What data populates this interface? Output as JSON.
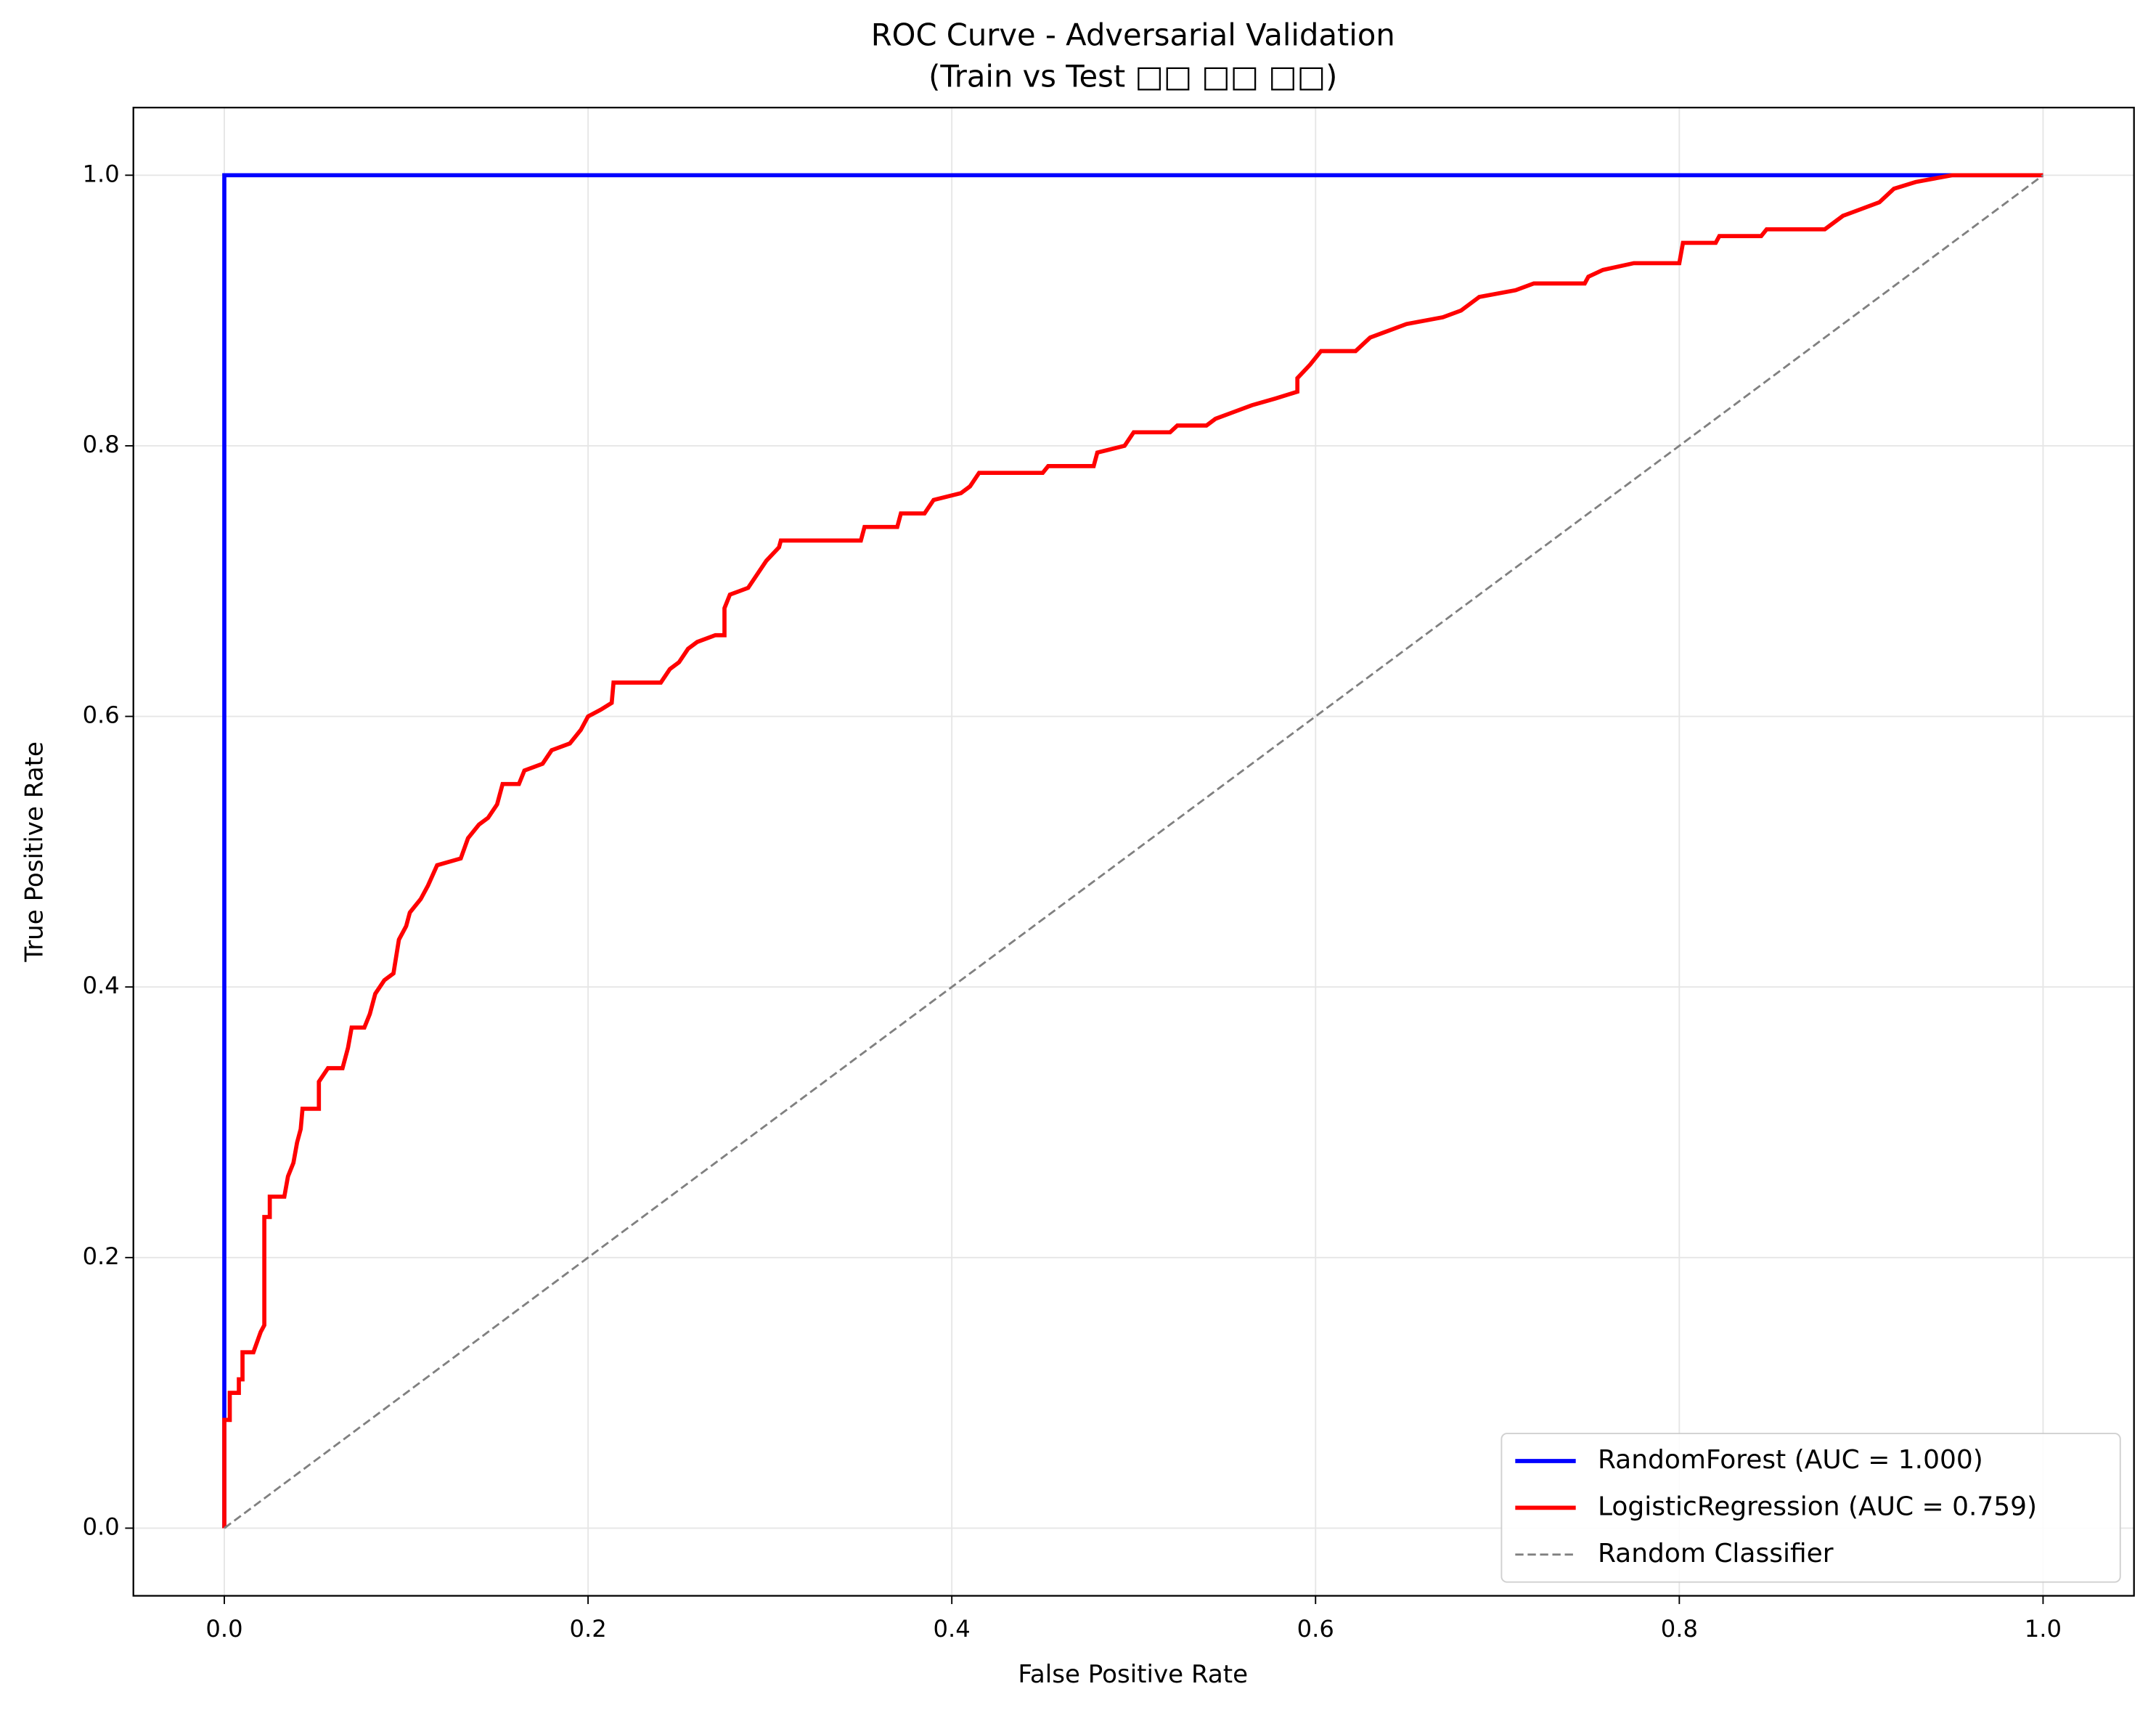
{
  "chart_data": {
    "type": "line",
    "title": "ROC Curve - Adversarial Validation",
    "subtitle": "(Train vs Test □□ □□ □□)",
    "x_label": "False Positive Rate",
    "y_label": "True Positive Rate",
    "xlim": [
      -0.05,
      1.05
    ],
    "ylim": [
      -0.05,
      1.05
    ],
    "xticks": [
      {
        "value": 0,
        "label": "0.0"
      },
      0.2,
      0.4,
      0.6,
      0.8,
      {
        "value": 1,
        "label": "1.0"
      }
    ],
    "yticks": [
      {
        "value": 0,
        "label": "0.0"
      },
      0.2,
      0.4,
      0.6,
      0.8,
      {
        "value": 1,
        "label": "1.0"
      }
    ],
    "grid": true,
    "legend": "lower right",
    "series": [
      {
        "name": "RandomForest (AUC = 1.000)",
        "color": "#0000ff",
        "linestyle": "solid",
        "x": [
          0,
          0,
          0,
          0.95,
          1
        ],
        "values": [
          0,
          0.085,
          1,
          1,
          1
        ]
      },
      {
        "name": "LogisticRegression (AUC = 0.759)",
        "color": "#ff0000",
        "linestyle": "solid",
        "x": [
          0,
          0,
          0.003,
          0.003,
          0.008,
          0.008,
          0.01,
          0.01,
          0.016,
          0.02,
          0.022,
          0.022,
          0.025,
          0.025,
          0.033,
          0.035,
          0.038,
          0.04,
          0.042,
          0.043,
          0.052,
          0.052,
          0.057,
          0.065,
          0.068,
          0.07,
          0.077,
          0.08,
          0.083,
          0.088,
          0.093,
          0.096,
          0.1,
          0.102,
          0.108,
          0.112,
          0.117,
          0.13,
          0.134,
          0.14,
          0.145,
          0.15,
          0.153,
          0.162,
          0.165,
          0.175,
          0.18,
          0.19,
          0.196,
          0.2,
          0.207,
          0.213,
          0.214,
          0.24,
          0.245,
          0.25,
          0.255,
          0.26,
          0.27,
          0.275,
          0.275,
          0.278,
          0.288,
          0.293,
          0.298,
          0.305,
          0.306,
          0.35,
          0.352,
          0.37,
          0.372,
          0.385,
          0.39,
          0.405,
          0.41,
          0.415,
          0.45,
          0.453,
          0.478,
          0.48,
          0.495,
          0.5,
          0.52,
          0.524,
          0.54,
          0.545,
          0.555,
          0.565,
          0.578,
          0.59,
          0.59,
          0.597,
          0.603,
          0.622,
          0.63,
          0.64,
          0.65,
          0.67,
          0.68,
          0.69,
          0.71,
          0.72,
          0.748,
          0.75,
          0.758,
          0.775,
          0.8,
          0.802,
          0.82,
          0.822,
          0.845,
          0.848,
          0.88,
          0.89,
          0.9,
          0.91,
          0.918,
          0.93,
          0.95,
          1
        ],
        "values": [
          0,
          0.08,
          0.08,
          0.1,
          0.1,
          0.11,
          0.11,
          0.13,
          0.13,
          0.145,
          0.15,
          0.23,
          0.23,
          0.245,
          0.245,
          0.26,
          0.27,
          0.285,
          0.295,
          0.31,
          0.31,
          0.33,
          0.34,
          0.34,
          0.355,
          0.37,
          0.37,
          0.38,
          0.395,
          0.405,
          0.41,
          0.435,
          0.445,
          0.455,
          0.465,
          0.475,
          0.49,
          0.495,
          0.51,
          0.52,
          0.525,
          0.535,
          0.55,
          0.55,
          0.56,
          0.565,
          0.575,
          0.58,
          0.59,
          0.6,
          0.605,
          0.61,
          0.625,
          0.625,
          0.635,
          0.64,
          0.65,
          0.655,
          0.66,
          0.66,
          0.68,
          0.69,
          0.695,
          0.705,
          0.715,
          0.725,
          0.73,
          0.73,
          0.74,
          0.74,
          0.75,
          0.75,
          0.76,
          0.765,
          0.77,
          0.78,
          0.78,
          0.785,
          0.785,
          0.795,
          0.8,
          0.81,
          0.81,
          0.815,
          0.815,
          0.82,
          0.825,
          0.83,
          0.835,
          0.84,
          0.85,
          0.86,
          0.87,
          0.87,
          0.88,
          0.885,
          0.89,
          0.895,
          0.9,
          0.91,
          0.915,
          0.92,
          0.92,
          0.925,
          0.93,
          0.935,
          0.935,
          0.95,
          0.95,
          0.955,
          0.955,
          0.96,
          0.96,
          0.97,
          0.975,
          0.98,
          0.99,
          0.995,
          1,
          1
        ]
      },
      {
        "name": "Random Classifier",
        "color": "#808080",
        "linestyle": "dashed",
        "x": [
          0,
          1
        ],
        "values": [
          0,
          1
        ]
      }
    ]
  }
}
